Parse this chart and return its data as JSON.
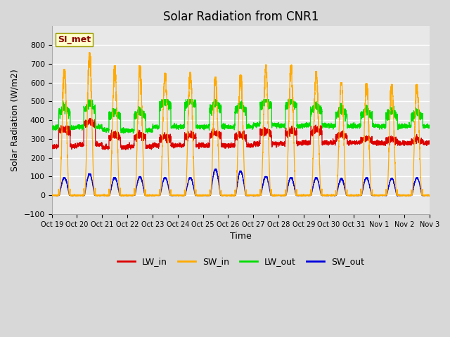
{
  "title": "Solar Radiation from CNR1",
  "xlabel": "Time",
  "ylabel": "Solar Radiation (W/m2)",
  "ylim": [
    -100,
    900
  ],
  "yticks": [
    -100,
    0,
    100,
    200,
    300,
    400,
    500,
    600,
    700,
    800
  ],
  "x_tick_labels": [
    "Oct 19",
    "Oct 20",
    "Oct 21",
    "Oct 22",
    "Oct 23",
    "Oct 24",
    "Oct 25",
    "Oct 26",
    "Oct 27",
    "Oct 28",
    "Oct 29",
    "Oct 30",
    "Oct 31",
    "Nov 1",
    "Nov 2",
    "Nov 3"
  ],
  "line_colors": {
    "LW_in": "#dd0000",
    "SW_in": "#ffaa00",
    "LW_out": "#00dd00",
    "SW_out": "#0000dd"
  },
  "annotation_text": "SI_met",
  "bg_color": "#e8e8e8",
  "grid_color": "#ffffff",
  "title_fontsize": 12,
  "axis_fontsize": 9,
  "tick_fontsize": 8,
  "num_days": 15,
  "points_per_day": 288,
  "sw_peaks": [
    670,
    760,
    690,
    690,
    650,
    655,
    630,
    640,
    695,
    695,
    660,
    600,
    595,
    590,
    590
  ],
  "sw_out_peaks": [
    95,
    115,
    95,
    100,
    95,
    95,
    140,
    130,
    100,
    95,
    95,
    90,
    95,
    90,
    95
  ],
  "lw_in_day": [
    340,
    380,
    310,
    310,
    300,
    310,
    320,
    310,
    330,
    330,
    340,
    310,
    295,
    290,
    285
  ],
  "lw_in_night": [
    260,
    270,
    255,
    260,
    265,
    265,
    265,
    265,
    275,
    275,
    280,
    280,
    280,
    278,
    278
  ],
  "lw_out_day": [
    440,
    460,
    420,
    420,
    480,
    480,
    460,
    455,
    480,
    475,
    450,
    430,
    425,
    420,
    420
  ],
  "lw_out_night": [
    360,
    365,
    345,
    345,
    365,
    365,
    365,
    365,
    375,
    370,
    375,
    370,
    370,
    368,
    368
  ]
}
